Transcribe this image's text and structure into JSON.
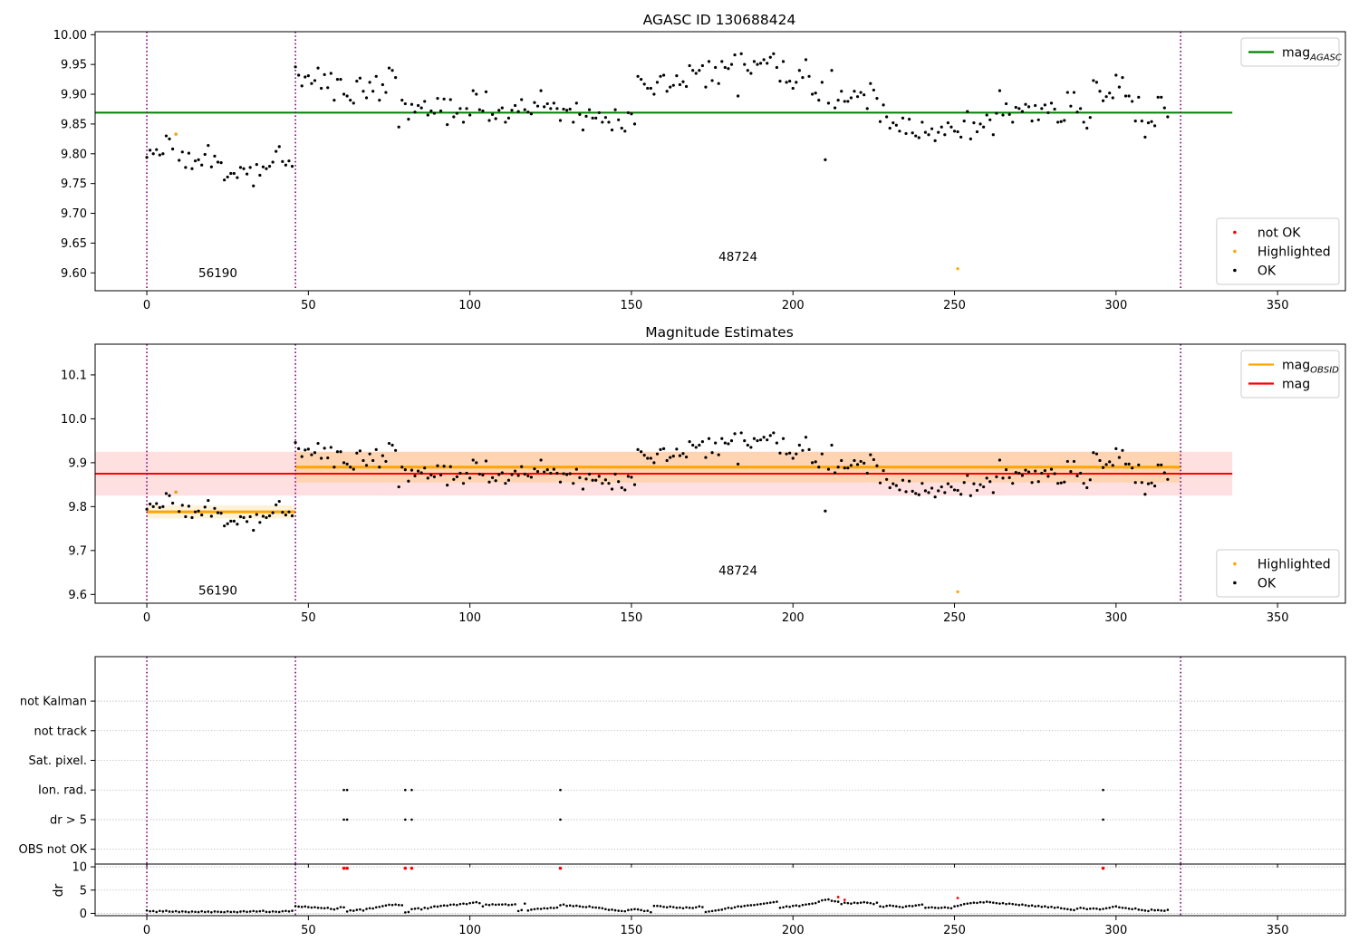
{
  "chart_data": [
    {
      "id": "agasc",
      "type": "scatter",
      "title": "AGASC ID 130688424",
      "xlim": [
        -16,
        371
      ],
      "ylim": [
        9.57,
        10.005
      ],
      "x_ticks": [
        0,
        50,
        100,
        150,
        200,
        250,
        300,
        350
      ],
      "y_ticks": [
        9.6,
        9.65,
        9.7,
        9.75,
        9.8,
        9.85,
        9.9,
        9.95,
        10.0
      ],
      "y_tick_decimals": 2,
      "grid": false,
      "legend_upper": {
        "placement": "top-right",
        "entries": [
          {
            "label": "mag",
            "sub": "AGASC",
            "color": "#008000",
            "kind": "line"
          }
        ]
      },
      "legend_lower": {
        "placement": "bottom-right",
        "entries": [
          {
            "label": "not OK",
            "color": "#ff0000",
            "kind": "dot"
          },
          {
            "label": "Highlighted",
            "color": "#ffa500",
            "kind": "dot"
          },
          {
            "label": "OK",
            "color": "#000000",
            "kind": "dot"
          }
        ]
      },
      "hlines": [
        {
          "y": 9.869,
          "x0": -16,
          "x1": 336,
          "color": "#008000",
          "width": 2
        }
      ],
      "bands": [],
      "segments": [],
      "obs_boundaries": [
        0,
        46,
        320
      ],
      "annotations": [
        {
          "text": "56190",
          "x": 22,
          "y": 9.593
        },
        {
          "text": "48724",
          "x": 183,
          "y": 9.62
        }
      ],
      "highlighted_points": [
        {
          "x": 9,
          "y": 9.833
        },
        {
          "x": 251,
          "y": 9.607
        }
      ],
      "ok_series": "mag"
    },
    {
      "id": "estimates",
      "type": "scatter",
      "title": "Magnitude Estimates",
      "xlim": [
        -16,
        371
      ],
      "ylim": [
        9.58,
        10.17
      ],
      "x_ticks": [
        0,
        50,
        100,
        150,
        200,
        250,
        300,
        350
      ],
      "y_ticks": [
        9.6,
        9.7,
        9.8,
        9.9,
        10.0,
        10.1
      ],
      "y_tick_decimals": 1,
      "grid": false,
      "legend_upper": {
        "placement": "top-right",
        "entries": [
          {
            "label": "mag",
            "sub": "OBSID",
            "color": "#ffa500",
            "kind": "line"
          },
          {
            "label": "mag",
            "sub": "",
            "color": "#ff0000",
            "kind": "line"
          }
        ]
      },
      "legend_lower": {
        "placement": "bottom-right",
        "entries": [
          {
            "label": "Highlighted",
            "color": "#ffa500",
            "kind": "dot"
          },
          {
            "label": "OK",
            "color": "#000000",
            "kind": "dot"
          }
        ]
      },
      "bands": [
        {
          "x0": -16,
          "x1": 336,
          "y0": 9.825,
          "y1": 9.925,
          "color": "#ff0000",
          "opacity": 0.12
        },
        {
          "x0": 0,
          "x1": 46,
          "y0": 9.773,
          "y1": 9.803,
          "color": "#ffa500",
          "opacity": 0.15
        },
        {
          "x0": 46,
          "x1": 320,
          "y0": 9.855,
          "y1": 9.925,
          "color": "#ffa500",
          "opacity": 0.2
        }
      ],
      "hlines": [
        {
          "y": 9.875,
          "x0": -16,
          "x1": 336,
          "color": "#ff0000",
          "width": 2
        }
      ],
      "segments": [
        {
          "x0": 0,
          "x1": 46,
          "y": 9.788,
          "color": "#ffa500",
          "width": 3
        },
        {
          "x0": 46,
          "x1": 320,
          "y": 9.89,
          "color": "#ffa500",
          "width": 3
        }
      ],
      "obs_boundaries": [
        0,
        46,
        320
      ],
      "annotations": [
        {
          "text": "56190",
          "x": 22,
          "y": 9.6
        },
        {
          "text": "48724",
          "x": 183,
          "y": 9.645
        }
      ],
      "highlighted_points": [
        {
          "x": 9,
          "y": 9.833
        },
        {
          "x": 251,
          "y": 9.606
        }
      ],
      "ok_series": "mag"
    },
    {
      "id": "flags",
      "type": "scatter",
      "title": "",
      "xlim": [
        -16,
        371
      ],
      "ylim": [
        -0.5,
        6.5
      ],
      "categories": [
        "OBS not OK",
        "dr > 5",
        "Ion. rad.",
        "Sat. pixel.",
        "not track",
        "not Kalman"
      ],
      "grid": true,
      "obs_boundaries": [
        0,
        46,
        320
      ],
      "flag_points": [
        {
          "category": "Ion. rad.",
          "x": [
            61,
            62,
            80,
            82,
            128,
            296
          ]
        },
        {
          "category": "dr > 5",
          "x": [
            61,
            62,
            80,
            82,
            128,
            296
          ]
        }
      ]
    },
    {
      "id": "dr",
      "type": "scatter",
      "title": "",
      "xlim": [
        -16,
        371
      ],
      "ylim": [
        -0.5,
        10.6
      ],
      "x_ticks": [
        0,
        50,
        100,
        150,
        200,
        250,
        300,
        350
      ],
      "y_ticks": [
        0,
        5,
        10
      ],
      "ylabel": "dr",
      "grid": true,
      "obs_boundaries": [
        0,
        46,
        320
      ],
      "ok_series": "dr",
      "clipped_points": [
        61,
        62,
        80,
        82,
        128,
        296
      ],
      "red_points": [
        {
          "x": 214,
          "y": 3.5
        },
        {
          "x": 216,
          "y": 2.9
        },
        {
          "x": 251,
          "y": 3.3
        }
      ],
      "clip_value": 9.7
    }
  ],
  "series": {
    "mag": [
      9.794,
      9.806,
      9.8,
      9.807,
      9.798,
      9.8,
      9.83,
      9.825,
      9.808,
      9.833,
      9.789,
      9.803,
      9.777,
      9.801,
      9.775,
      9.788,
      9.79,
      9.781,
      9.799,
      9.814,
      9.778,
      9.796,
      9.786,
      9.785,
      9.756,
      9.761,
      9.767,
      9.767,
      9.76,
      9.777,
      9.775,
      9.766,
      9.777,
      9.746,
      9.782,
      9.764,
      9.778,
      9.775,
      9.779,
      9.786,
      9.804,
      9.812,
      9.787,
      9.781,
      9.788,
      9.779,
      9.946,
      9.932,
      9.914,
      9.929,
      9.931,
      9.918,
      9.923,
      9.944,
      9.91,
      9.933,
      9.911,
      9.935,
      9.89,
      9.925,
      9.925,
      9.9,
      9.897,
      9.89,
      9.885,
      9.922,
      9.927,
      9.905,
      9.894,
      9.92,
      9.905,
      9.93,
      9.89,
      9.916,
      9.903,
      9.944,
      9.94,
      9.928,
      9.845,
      9.89,
      9.884,
      9.858,
      9.883,
      9.87,
      9.881,
      9.877,
      9.888,
      9.865,
      9.872,
      9.868,
      9.893,
      9.872,
      9.892,
      9.849,
      9.891,
      9.862,
      9.868,
      9.876,
      9.853,
      9.876,
      9.865,
      9.906,
      9.9,
      9.874,
      9.872,
      9.904,
      9.856,
      9.866,
      9.859,
      9.873,
      9.877,
      9.853,
      9.86,
      9.873,
      9.881,
      9.871,
      9.891,
      9.874,
      9.87,
      9.867,
      9.886,
      9.88,
      9.906,
      9.879,
      9.884,
      9.876,
      9.885,
      9.876,
      9.856,
      9.875,
      9.873,
      9.875,
      9.853,
      9.885,
      9.866,
      9.84,
      9.863,
      9.874,
      9.86,
      9.86,
      9.869,
      9.853,
      9.861,
      9.853,
      9.84,
      9.874,
      9.857,
      9.843,
      9.838,
      9.869,
      9.867,
      9.85,
      9.93,
      9.925,
      9.917,
      9.91,
      9.91,
      9.9,
      9.92,
      9.93,
      9.932,
      9.905,
      9.912,
      9.915,
      9.931,
      9.916,
      9.921,
      9.913,
      9.948,
      9.94,
      9.935,
      9.94,
      9.948,
      9.912,
      9.955,
      9.923,
      9.945,
      9.918,
      9.955,
      9.945,
      9.943,
      9.95,
      9.966,
      9.897,
      9.968,
      9.95,
      9.94,
      9.935,
      9.955,
      9.95,
      9.952,
      9.958,
      9.952,
      9.962,
      9.968,
      9.945,
      9.922,
      9.955,
      9.92,
      9.922,
      9.91,
      9.92,
      9.94,
      9.928,
      9.958,
      9.93,
      9.9,
      9.902,
      9.89,
      9.92,
      9.79,
      9.885,
      9.94,
      9.877,
      9.89,
      9.905,
      9.888,
      9.888,
      9.894,
      9.905,
      9.896,
      9.903,
      9.899,
      9.876,
      9.918,
      9.907,
      9.893,
      9.854,
      9.882,
      9.862,
      9.843,
      9.852,
      9.848,
      9.838,
      9.86,
      9.834,
      9.858,
      9.835,
      9.83,
      9.827,
      9.853,
      9.836,
      9.832,
      9.842,
      9.822,
      9.836,
      9.845,
      9.832,
      9.852,
      9.845,
      9.838,
      9.837,
      9.828,
      9.855,
      9.871,
      9.825,
      9.852,
      9.837,
      9.85,
      9.845,
      9.865,
      9.857,
      9.832,
      9.868,
      9.906,
      9.865,
      9.884,
      9.866,
      9.853,
      9.878,
      9.876,
      9.871,
      9.883,
      9.879,
      9.855,
      9.881,
      9.857,
      9.876,
      9.882,
      9.869,
      9.885,
      9.875,
      9.853,
      9.854,
      9.856,
      9.903,
      9.88,
      9.903,
      9.87,
      9.876,
      9.853,
      9.843,
      9.861,
      9.923,
      9.92,
      9.905,
      9.889,
      9.896,
      9.902,
      9.894,
      9.932,
      9.912,
      9.928,
      9.897,
      9.897,
      9.888,
      9.855,
      9.895,
      9.855,
      9.828,
      9.852,
      9.854,
      9.847,
      9.895,
      9.895,
      9.877,
      9.862
    ],
    "dr": [
      0.62,
      0.45,
      0.5,
      0.3,
      0.52,
      0.41,
      0.55,
      0.38,
      0.35,
      0.47,
      0.3,
      0.42,
      0.36,
      0.25,
      0.4,
      0.33,
      0.28,
      0.44,
      0.3,
      0.38,
      0.22,
      0.41,
      0.35,
      0.3,
      0.26,
      0.42,
      0.3,
      0.35,
      0.25,
      0.38,
      0.46,
      0.32,
      0.4,
      0.5,
      0.38,
      0.45,
      0.55,
      0.33,
      0.3,
      0.42,
      0.35,
      0.3,
      0.45,
      0.52,
      0.42,
      0.55,
      1.55,
      1.45,
      1.38,
      1.48,
      1.35,
      1.25,
      1.32,
      1.2,
      1.15,
      1.1,
      1.2,
      0.95,
      0.85,
      1.05,
      1.35,
      1.3,
      0.4,
      0.65,
      0.55,
      0.75,
      0.85,
      0.6,
      0.95,
      1.1,
      1.05,
      1.3,
      1.4,
      1.55,
      1.7,
      1.85,
      1.8,
      1.9,
      1.8,
      1.75,
      0.2,
      0.3,
      0.9,
      1.0,
      1.1,
      0.85,
      1.2,
      1.05,
      1.3,
      1.5,
      1.45,
      1.6,
      1.7,
      1.65,
      1.85,
      1.9,
      1.8,
      2.0,
      2.1,
      2.0,
      2.2,
      2.3,
      2.4,
      2.2,
      1.5,
      1.9,
      1.8,
      1.95,
      1.85,
      1.9,
      1.9,
      1.95,
      1.8,
      1.85,
      1.95,
      0.5,
      0.7,
      2.1,
      0.6,
      0.8,
      0.9,
      1.0,
      0.95,
      1.1,
      1.05,
      1.2,
      1.15,
      1.25,
      1.75,
      1.9,
      1.6,
      1.7,
      1.55,
      1.65,
      1.5,
      1.4,
      1.35,
      1.5,
      1.3,
      1.25,
      1.2,
      1.1,
      0.9,
      0.75,
      0.8,
      0.65,
      0.55,
      0.5,
      0.45,
      0.7,
      0.8,
      0.9,
      0.85,
      0.7,
      0.5,
      0.55,
      0.25,
      1.6,
      1.6,
      1.55,
      1.4,
      1.3,
      1.45,
      1.35,
      1.2,
      1.25,
      1.1,
      1.3,
      1.2,
      1.15,
      1.3,
      1.5,
      1.35,
      0.3,
      0.4,
      0.5,
      0.6,
      0.7,
      0.8,
      1.0,
      1.2,
      1.1,
      1.3,
      1.5,
      1.45,
      1.6,
      1.7,
      1.75,
      1.8,
      1.9,
      2.0,
      2.1,
      2.2,
      2.3,
      2.4,
      2.5,
      1.2,
      1.3,
      1.5,
      1.4,
      1.6,
      1.7,
      1.55,
      1.8,
      1.9,
      2.0,
      2.1,
      2.2,
      2.5,
      2.8,
      2.9,
      3.0,
      2.7,
      2.6,
      2.5,
      2.0,
      2.3,
      2.2,
      2.1,
      2.3,
      2.2,
      2.3,
      2.4,
      2.3,
      2.2,
      2.0,
      2.3,
      1.5,
      1.4,
      1.6,
      1.7,
      1.6,
      1.5,
      1.4,
      1.3,
      1.5,
      1.6,
      1.55,
      1.7,
      1.8,
      1.9,
      1.2,
      1.25,
      1.3,
      1.2,
      1.15,
      1.2,
      1.3,
      1.2,
      1.1,
      1.5,
      1.6,
      1.8,
      2.0,
      2.1,
      2.2,
      2.3,
      2.25,
      2.4,
      2.35,
      2.5,
      2.4,
      2.3,
      2.2,
      2.1,
      2.2,
      2.0,
      2.1,
      2.0,
      1.9,
      1.8,
      1.9,
      1.75,
      1.6,
      1.7,
      1.5,
      1.6,
      1.4,
      1.5,
      1.3,
      1.4,
      1.2,
      1.3,
      1.1,
      1.0,
      0.9,
      0.8,
      0.7,
      1.0,
      1.2,
      1.1,
      0.9,
      1.0,
      1.05,
      1.0,
      0.85,
      0.95,
      1.1,
      1.2,
      1.4,
      1.5,
      1.3,
      1.2,
      1.15,
      1.0,
      0.9,
      1.05,
      0.8,
      0.7,
      0.6,
      0.5,
      0.8,
      0.65,
      0.7,
      0.6,
      0.55,
      0.75
    ]
  }
}
